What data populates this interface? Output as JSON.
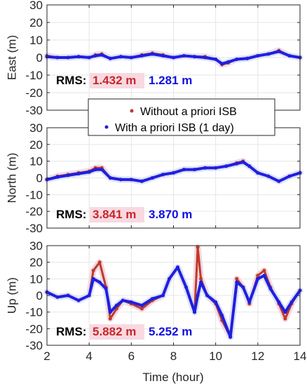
{
  "chart_data": {
    "type": "scatter",
    "xlabel": "Time (hour)",
    "xlim": [
      2,
      14
    ],
    "xticks": [
      2,
      4,
      6,
      8,
      10,
      12,
      14
    ],
    "legend": {
      "placement": "center",
      "entries": [
        {
          "name": "Without a priori ISB",
          "color": "#c0392b"
        },
        {
          "name": "With a priori ISB (1 day)",
          "color": "#1f1fe0"
        }
      ]
    },
    "rms_label": "RMS:",
    "panels": [
      {
        "ylabel": "East (m)",
        "ylim": [
          -30,
          30
        ],
        "yticks": [
          -30,
          -20,
          -10,
          0,
          10,
          20,
          30
        ],
        "rms": [
          "1.432 m",
          "1.281 m"
        ],
        "series": [
          {
            "name": "Without a priori ISB",
            "x": [
              2,
              2.5,
              3,
              3.5,
              4,
              4.3,
              4.6,
              5,
              5.5,
              6,
              6.5,
              7,
              7.5,
              8,
              8.5,
              9,
              9.5,
              10,
              10.3,
              10.6,
              11,
              11.5,
              12,
              12.5,
              13,
              13.5,
              14
            ],
            "y": [
              1,
              0,
              0,
              0.5,
              0,
              1.5,
              2,
              -0.5,
              0.5,
              0,
              1.5,
              2.5,
              1.5,
              0,
              1,
              0.5,
              0.5,
              -1,
              -4,
              -3,
              -1,
              -0.5,
              1,
              2,
              4,
              1,
              0
            ]
          },
          {
            "name": "With a priori ISB (1 day)",
            "x": [
              2,
              2.5,
              3,
              3.5,
              4,
              4.3,
              4.6,
              5,
              5.5,
              6,
              6.5,
              7,
              7.5,
              8,
              8.5,
              9,
              9.5,
              10,
              10.3,
              10.6,
              11,
              11.5,
              12,
              12.5,
              13,
              13.5,
              14
            ],
            "y": [
              0.5,
              0,
              0,
              0.5,
              0,
              1,
              1.5,
              -0.5,
              0.5,
              0,
              1,
              2,
              1,
              0,
              1,
              0.5,
              0,
              -1,
              -3.5,
              -2.5,
              -1,
              -0.5,
              1,
              2,
              3.5,
              1,
              0
            ]
          }
        ]
      },
      {
        "ylabel": "North (m)",
        "ylim": [
          -30,
          30
        ],
        "yticks": [
          -30,
          -20,
          -10,
          0,
          10,
          20,
          30
        ],
        "rms": [
          "3.841 m",
          "3.870 m"
        ],
        "series": [
          {
            "name": "Without a priori ISB",
            "x": [
              2,
              2.5,
              3,
              3.5,
              4,
              4.3,
              4.6,
              5,
              5.5,
              6,
              6.5,
              7,
              7.5,
              8,
              8.5,
              9,
              9.5,
              10,
              10.5,
              11,
              11.3,
              11.6,
              12,
              12.5,
              13,
              13.5,
              14
            ],
            "y": [
              -1,
              1,
              2,
              3,
              4,
              6,
              6,
              0,
              -1,
              -1,
              -2,
              0,
              2,
              3,
              5,
              5,
              6,
              6,
              7,
              9,
              10,
              7,
              3,
              1,
              -2,
              1,
              3
            ]
          },
          {
            "name": "With a priori ISB (1 day)",
            "x": [
              2,
              2.5,
              3,
              3.5,
              4,
              4.3,
              4.6,
              5,
              5.5,
              6,
              6.5,
              7,
              7.5,
              8,
              8.5,
              9,
              9.5,
              10,
              10.5,
              11,
              11.3,
              11.6,
              12,
              12.5,
              13,
              13.5,
              14
            ],
            "y": [
              -1,
              0.5,
              1.5,
              2.5,
              3.5,
              5,
              5,
              0,
              -1,
              -1,
              -2,
              0,
              2,
              3,
              5,
              5,
              6,
              6,
              7,
              8.5,
              9.5,
              7,
              3,
              1,
              -2,
              1,
              3
            ]
          }
        ]
      },
      {
        "ylabel": "Up (m)",
        "ylim": [
          -30,
          30
        ],
        "yticks": [
          -30,
          -20,
          -10,
          0,
          10,
          20,
          30
        ],
        "rms": [
          "5.882 m",
          "5.252 m"
        ],
        "series": [
          {
            "name": "Without a priori ISB",
            "x": [
              2,
              2.5,
              3,
              3.5,
              4,
              4.2,
              4.5,
              4.8,
              5,
              5.3,
              5.6,
              6,
              6.5,
              7,
              7.5,
              7.8,
              8.2,
              8.6,
              9,
              9.15,
              9.3,
              9.6,
              10,
              10.3,
              10.7,
              11,
              11.3,
              11.6,
              12,
              12.3,
              12.6,
              13,
              13.3,
              13.6,
              14
            ],
            "y": [
              2,
              -1,
              0,
              -3,
              0,
              15,
              20,
              5,
              -14,
              -8,
              -3,
              -5,
              -8,
              -3,
              0,
              10,
              17,
              5,
              -10,
              29,
              10,
              0,
              -5,
              -15,
              -25,
              10,
              5,
              -5,
              12,
              15,
              5,
              -5,
              -14,
              -5,
              3
            ]
          },
          {
            "name": "With a priori ISB (1 day)",
            "x": [
              2,
              2.5,
              3,
              3.5,
              4,
              4.2,
              4.5,
              4.8,
              5,
              5.3,
              5.6,
              6,
              6.5,
              7,
              7.5,
              7.8,
              8.2,
              8.6,
              9,
              9.15,
              9.3,
              9.6,
              10,
              10.3,
              10.7,
              11,
              11.3,
              11.6,
              12,
              12.3,
              12.6,
              13,
              13.3,
              13.6,
              14
            ],
            "y": [
              2,
              -1,
              0,
              -3,
              0,
              10,
              8,
              4,
              -10,
              -6,
              -3,
              -4,
              -6,
              -2,
              0,
              10,
              17,
              5,
              -10,
              0,
              8,
              0,
              -4,
              -12,
              -25,
              8,
              5,
              -4,
              10,
              12,
              4,
              -4,
              -10,
              -4,
              3
            ]
          }
        ]
      }
    ]
  }
}
